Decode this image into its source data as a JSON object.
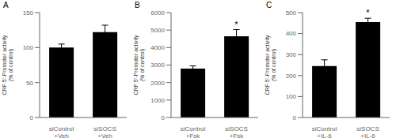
{
  "chart_data": [
    {
      "type": "bar",
      "title": "A",
      "categories": [
        "siControl\n+Veh",
        "siSOCS\n+Veh"
      ],
      "values": [
        100,
        122
      ],
      "errors": [
        5,
        10
      ],
      "ylim": [
        0,
        150
      ],
      "yticks": [
        0,
        50,
        100,
        150
      ],
      "ylabel": "CRF 5’-Promoter activity\n(% of control)",
      "color": "#000000"
    },
    {
      "type": "bar",
      "title": "B",
      "categories": [
        "siControl\n+Fsk",
        "siSOCS\n+Fsk"
      ],
      "values": [
        2800,
        4650
      ],
      "errors": [
        150,
        380
      ],
      "ylim": [
        0,
        6000
      ],
      "yticks": [
        0,
        1000,
        2000,
        3000,
        4000,
        5000,
        6000
      ],
      "ylabel": "CRF 5’-Promoter activity\n(% of control)",
      "annotations": [
        null,
        "*"
      ],
      "color": "#000000"
    },
    {
      "type": "bar",
      "title": "C",
      "categories": [
        "siControl\n+IL-6",
        "siSOCS\n+IL-6"
      ],
      "values": [
        245,
        455
      ],
      "errors": [
        30,
        18
      ],
      "ylim": [
        0,
        500
      ],
      "yticks": [
        0,
        100,
        200,
        300,
        400,
        500
      ],
      "ylabel": "CRF 5’-Promoter activity\n(% of control)",
      "annotations": [
        null,
        "*"
      ],
      "color": "#000000"
    }
  ]
}
